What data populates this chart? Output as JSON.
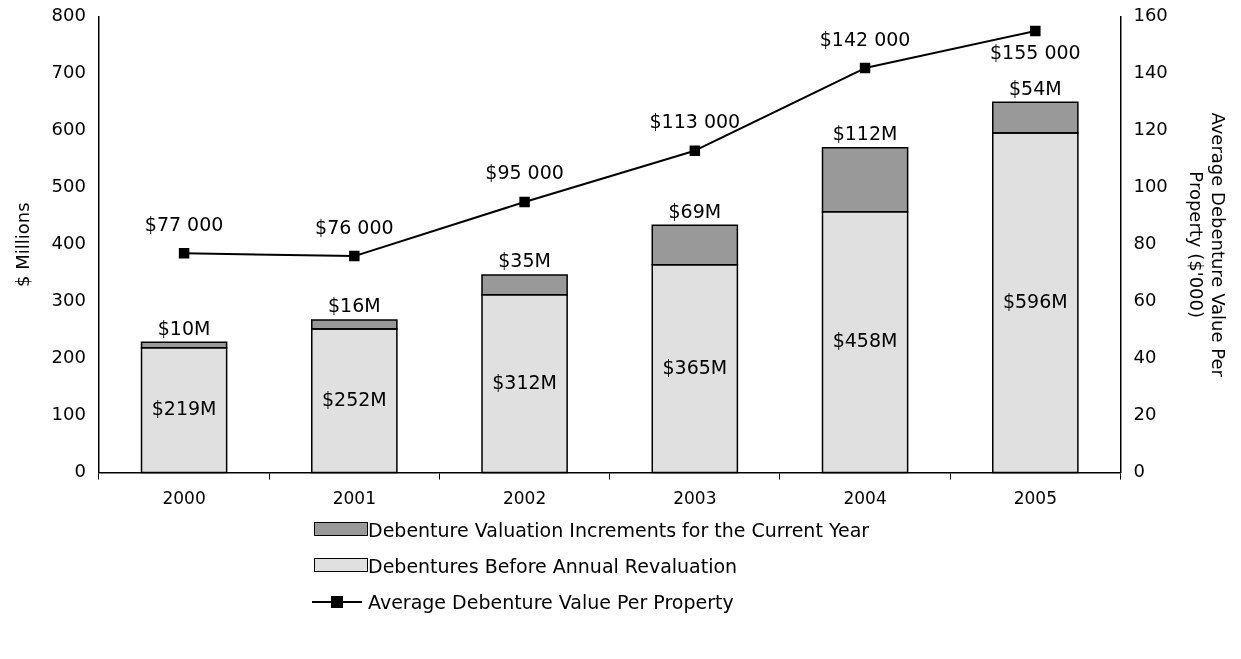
{
  "chart_data": {
    "type": "bar",
    "stacked": true,
    "categories": [
      "2000",
      "2001",
      "2002",
      "2003",
      "2004",
      "2005"
    ],
    "ylabel": "$ Millions",
    "y2label": "Average Debenture Value Per Property ($'000)",
    "ylim": [
      0,
      800
    ],
    "yticks": [
      0,
      100,
      200,
      300,
      400,
      500,
      600,
      700,
      800
    ],
    "y2lim": [
      0,
      160
    ],
    "y2ticks": [
      0,
      20,
      40,
      60,
      80,
      100,
      120,
      140,
      160
    ],
    "grid": false,
    "legend": "bottom",
    "marker": "square",
    "line_style": "solid",
    "series": [
      {
        "name": "Debentures Before Annual Revaluation",
        "color": "#e0e0e0",
        "values": [
          219,
          252,
          312,
          365,
          458,
          596
        ],
        "value_labels": [
          "$219M",
          "$252M",
          "$312M",
          "$365M",
          "$458M",
          "$596M"
        ]
      },
      {
        "name": "Debenture Valuation Increments for the Current Year",
        "color": "#999999",
        "values": [
          10,
          16,
          35,
          69,
          112,
          54
        ],
        "value_labels": [
          "$10M",
          "$16M",
          "$35M",
          "$69M",
          "$112M",
          "$54M"
        ]
      },
      {
        "name": "Average Debenture Value Per Property",
        "type": "line",
        "axis": "y2",
        "color": "#000000",
        "values": [
          77,
          76,
          95,
          113,
          142,
          155
        ]
      }
    ],
    "annotations": [
      "$77 000",
      "$76 000",
      "$95 000",
      "$113 000",
      "$142 000",
      "$155 000"
    ]
  }
}
